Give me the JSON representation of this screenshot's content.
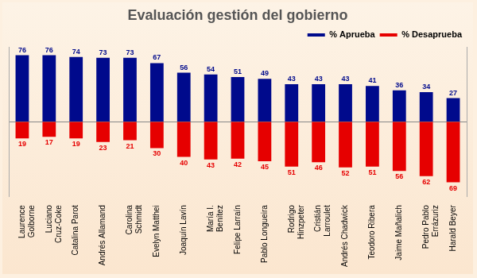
{
  "chart_data": {
    "type": "bar",
    "title": "Evaluación gestión del gobierno",
    "categories": [
      "Laurence Golborne",
      "Luciano Cruz-Coke",
      "Catalina Parot",
      "Andrés Allamand",
      "Carolina Schmidt",
      "Evelyn Matthei",
      "Joaquín Lavín",
      "María I. Benítez",
      "Felipe Larraín",
      "Pablo Longueira",
      "Rodrigo Hinzpeter",
      "Cristián Larroulet",
      "Andrés Chadwick",
      "Teodoro Ribera",
      "Jaime Mañalich",
      "Pedro Pablo Errázuriz",
      "Harald Beyer"
    ],
    "series": [
      {
        "name": "% Aprueba",
        "color": "#000a8c",
        "values": [
          76,
          76,
          74,
          73,
          73,
          67,
          56,
          54,
          51,
          49,
          43,
          43,
          43,
          41,
          36,
          34,
          27
        ]
      },
      {
        "name": "% Desaprueba",
        "color": "#e60000",
        "axis": "y2",
        "values": [
          19,
          17,
          19,
          23,
          21,
          30,
          40,
          43,
          42,
          45,
          51,
          46,
          52,
          51,
          56,
          62,
          69
        ]
      }
    ],
    "ylim": [
      -85,
      85
    ],
    "yticks": [
      0
    ],
    "y2lim": [
      85,
      -85
    ],
    "y2ticks": [
      0
    ],
    "grid": true,
    "legend": "top-right",
    "data_labels": true,
    "tick_labels": "x"
  }
}
